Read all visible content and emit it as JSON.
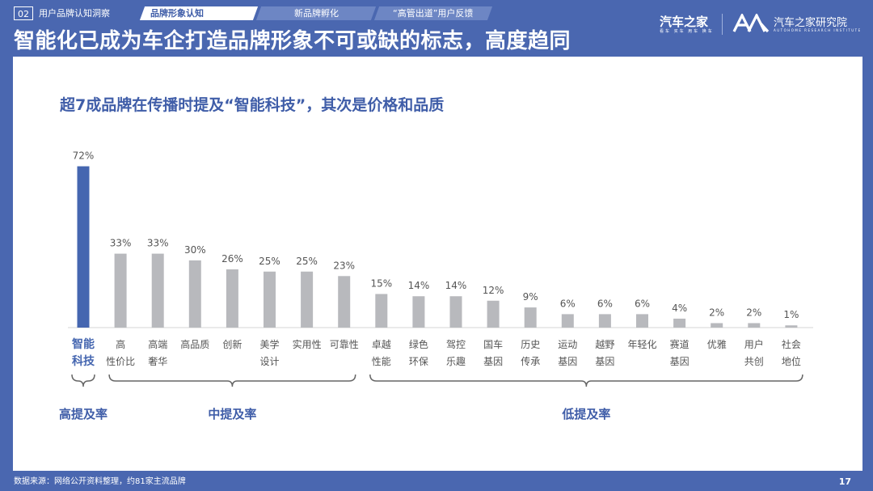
{
  "nav": {
    "number": "02",
    "tabs": [
      "用户品牌认知洞察",
      "品牌形象认知",
      "新品牌孵化",
      "“高管出道”用户反馈"
    ]
  },
  "page_title": "智能化已成为车企打造品牌形象不可或缺的标志，高度趋同",
  "logo": {
    "brand": "汽车之家",
    "brand_sub": "看车 买车 用车 换车",
    "institute": "汽车之家研究院",
    "institute_sub": "AUTOHOME RESEARCH INSTITUTE"
  },
  "footer": "数据来源：网络公开资料整理，约81家主流品牌",
  "page_number": "17",
  "colors": {
    "accent": "#4a67b0",
    "highlight_bar": "#4566b0",
    "bar": "#b8b9bd"
  },
  "chart_data": {
    "type": "bar",
    "title": "超7成品牌在传播时提及“智能科技”，其次是价格和品质",
    "categories": [
      [
        "智能",
        "科技"
      ],
      [
        "高",
        "性价比"
      ],
      [
        "高端",
        "奢华"
      ],
      [
        "高品质"
      ],
      [
        "创新"
      ],
      [
        "美学",
        "设计"
      ],
      [
        "实用性"
      ],
      [
        "可靠性"
      ],
      [
        "卓越",
        "性能"
      ],
      [
        "绿色",
        "环保"
      ],
      [
        "驾控",
        "乐趣"
      ],
      [
        "国车",
        "基因"
      ],
      [
        "历史",
        "传承"
      ],
      [
        "运动",
        "基因"
      ],
      [
        "越野",
        "基因"
      ],
      [
        "年轻化"
      ],
      [
        "赛道",
        "基因"
      ],
      [
        "优雅"
      ],
      [
        "用户",
        "共创"
      ],
      [
        "社会",
        "地位"
      ]
    ],
    "values": [
      72,
      33,
      33,
      30,
      26,
      25,
      25,
      23,
      15,
      14,
      14,
      12,
      9,
      6,
      6,
      6,
      4,
      2,
      2,
      1
    ],
    "value_labels": [
      "72%",
      "33%",
      "33%",
      "30%",
      "26%",
      "25%",
      "25%",
      "23%",
      "15%",
      "14%",
      "14%",
      "12%",
      "9%",
      "6%",
      "6%",
      "6%",
      "4%",
      "2%",
      "2%",
      "1%"
    ],
    "highlight_index": 0,
    "ylim": [
      0,
      80
    ],
    "groups": [
      {
        "label": "高提及率",
        "from": 0,
        "to": 0
      },
      {
        "label": "中提及率",
        "from": 1,
        "to": 7
      },
      {
        "label": "低提及率",
        "from": 8,
        "to": 19
      }
    ]
  }
}
